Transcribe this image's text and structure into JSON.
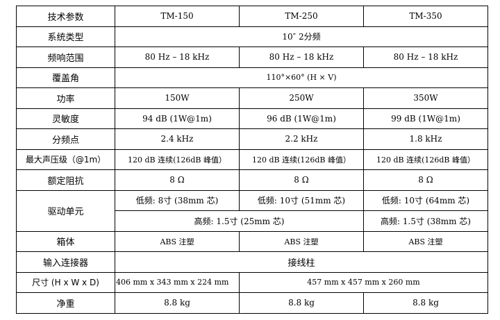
{
  "header": {
    "label": "技术参数",
    "models": [
      "TM-150",
      "TM-250",
      "TM-350"
    ]
  },
  "rows": {
    "system_type": {
      "label": "系统类型",
      "value": "10″  2分频"
    },
    "frequency_range": {
      "label": "频响范围",
      "values": [
        "80 Hz  –  18 kHz",
        "80 Hz  –  18 kHz",
        "80 Hz  –  18 kHz"
      ]
    },
    "coverage": {
      "label": "覆盖角",
      "value": "110°×60° (H × V)"
    },
    "power": {
      "label": "功率",
      "values": [
        "150W",
        "250W",
        "350W"
      ]
    },
    "sensitivity": {
      "label": "灵敏度",
      "values": [
        "94 dB (1W@1m)",
        "96 dB (1W@1m)",
        "99 dB (1W@1m)"
      ]
    },
    "crossover": {
      "label": "分频点",
      "values": [
        "2.4 kHz",
        "2.2 kHz",
        "1.8 kHz"
      ]
    },
    "max_spl": {
      "label": "最大声压级（@1m）",
      "values": [
        "120 dB 连续(126dB 峰值）",
        "120 dB 连续(126dB 峰值）",
        "120 dB 连续(126dB 峰值）"
      ]
    },
    "impedance": {
      "label": "额定阻抗",
      "values": [
        "8 Ω",
        "8 Ω",
        "8 Ω"
      ]
    },
    "drivers": {
      "label": "驱动单元",
      "low": [
        "低频: 8寸 (38mm 芯)",
        "低频: 10寸 (51mm 芯)",
        "低频: 10寸 (64mm 芯)"
      ],
      "high_shared": "高频: 1.5寸 (25mm 芯)",
      "high_350": "高频: 1.5寸 (38mm 芯)"
    },
    "enclosure": {
      "label": "箱体",
      "values": [
        "ABS 注塑",
        "ABS 注塑",
        "ABS 注塑"
      ]
    },
    "connector": {
      "label": "输入连接器",
      "value": "接线柱"
    },
    "dimensions": {
      "label": "尺寸 (H x W x D)",
      "tm150": "406 mm x 343 mm x 224 mm",
      "shared": "457 mm x 457 mm x 260 mm"
    },
    "weight": {
      "label": "净重",
      "values": [
        "8.8 kg",
        "8.8 kg",
        "8.8 kg"
      ]
    }
  }
}
